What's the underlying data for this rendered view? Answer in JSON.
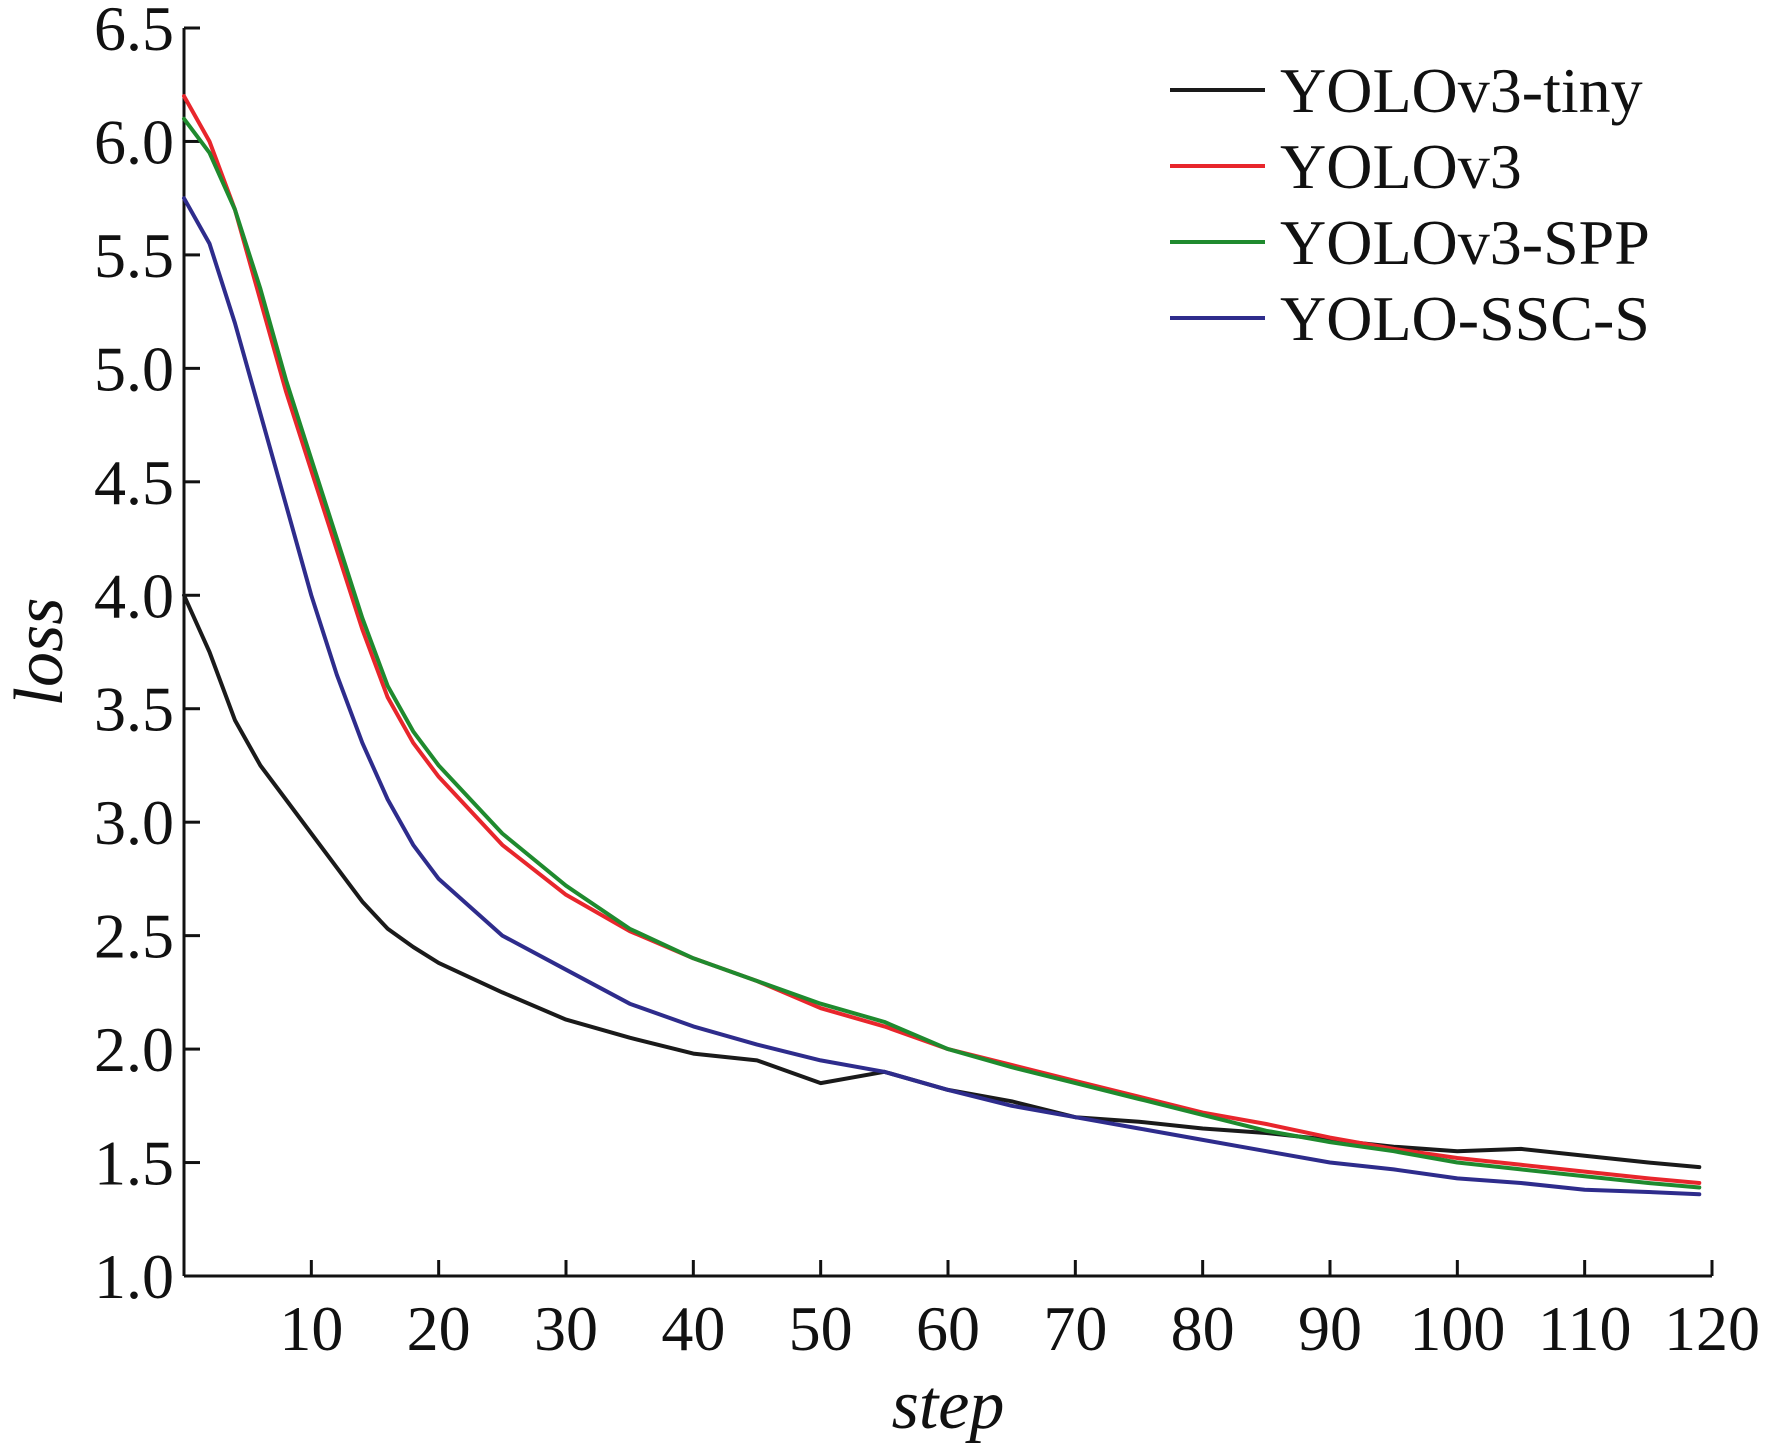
{
  "chart_data": {
    "type": "line",
    "title": "",
    "xlabel": "step",
    "ylabel": "loss",
    "xlim": [
      0,
      120
    ],
    "ylim": [
      1.0,
      6.5
    ],
    "x_ticks": [
      10,
      20,
      30,
      40,
      50,
      60,
      70,
      80,
      90,
      100,
      110,
      120
    ],
    "y_ticks": [
      "1.0",
      "1.5",
      "2.0",
      "2.5",
      "3.0",
      "3.5",
      "4.0",
      "4.5",
      "5.0",
      "5.5",
      "6.0",
      "6.5"
    ],
    "grid": false,
    "legend_position": "top-right",
    "x": [
      0,
      2,
      4,
      6,
      8,
      10,
      12,
      14,
      16,
      18,
      20,
      25,
      30,
      35,
      40,
      45,
      50,
      55,
      60,
      65,
      70,
      75,
      80,
      85,
      90,
      95,
      100,
      105,
      110,
      115,
      119
    ],
    "series": [
      {
        "name": "YOLOv3-tiny",
        "color": "#1a1a1a",
        "values": [
          4.0,
          3.75,
          3.45,
          3.25,
          3.1,
          2.95,
          2.8,
          2.65,
          2.53,
          2.45,
          2.38,
          2.25,
          2.13,
          2.05,
          1.98,
          1.95,
          1.85,
          1.9,
          1.82,
          1.77,
          1.7,
          1.68,
          1.65,
          1.63,
          1.6,
          1.57,
          1.55,
          1.56,
          1.53,
          1.5,
          1.48
        ]
      },
      {
        "name": "YOLOv3",
        "color": "#e8262c",
        "values": [
          6.2,
          6.0,
          5.7,
          5.3,
          4.9,
          4.55,
          4.2,
          3.85,
          3.55,
          3.35,
          3.2,
          2.9,
          2.68,
          2.52,
          2.4,
          2.3,
          2.18,
          2.1,
          2.0,
          1.93,
          1.86,
          1.79,
          1.72,
          1.67,
          1.61,
          1.56,
          1.52,
          1.49,
          1.46,
          1.43,
          1.41
        ]
      },
      {
        "name": "YOLOv3-SPP",
        "color": "#1f8a2e",
        "values": [
          6.1,
          5.95,
          5.7,
          5.35,
          4.95,
          4.6,
          4.25,
          3.9,
          3.6,
          3.4,
          3.25,
          2.95,
          2.72,
          2.53,
          2.4,
          2.3,
          2.2,
          2.12,
          2.0,
          1.92,
          1.85,
          1.78,
          1.71,
          1.64,
          1.59,
          1.55,
          1.5,
          1.47,
          1.44,
          1.41,
          1.39
        ]
      },
      {
        "name": "YOLO-SSC-S",
        "color": "#2e2c8c",
        "values": [
          5.75,
          5.55,
          5.2,
          4.8,
          4.4,
          4.0,
          3.65,
          3.35,
          3.1,
          2.9,
          2.75,
          2.5,
          2.35,
          2.2,
          2.1,
          2.02,
          1.95,
          1.9,
          1.82,
          1.75,
          1.7,
          1.65,
          1.6,
          1.55,
          1.5,
          1.47,
          1.43,
          1.41,
          1.38,
          1.37,
          1.36
        ]
      }
    ]
  }
}
